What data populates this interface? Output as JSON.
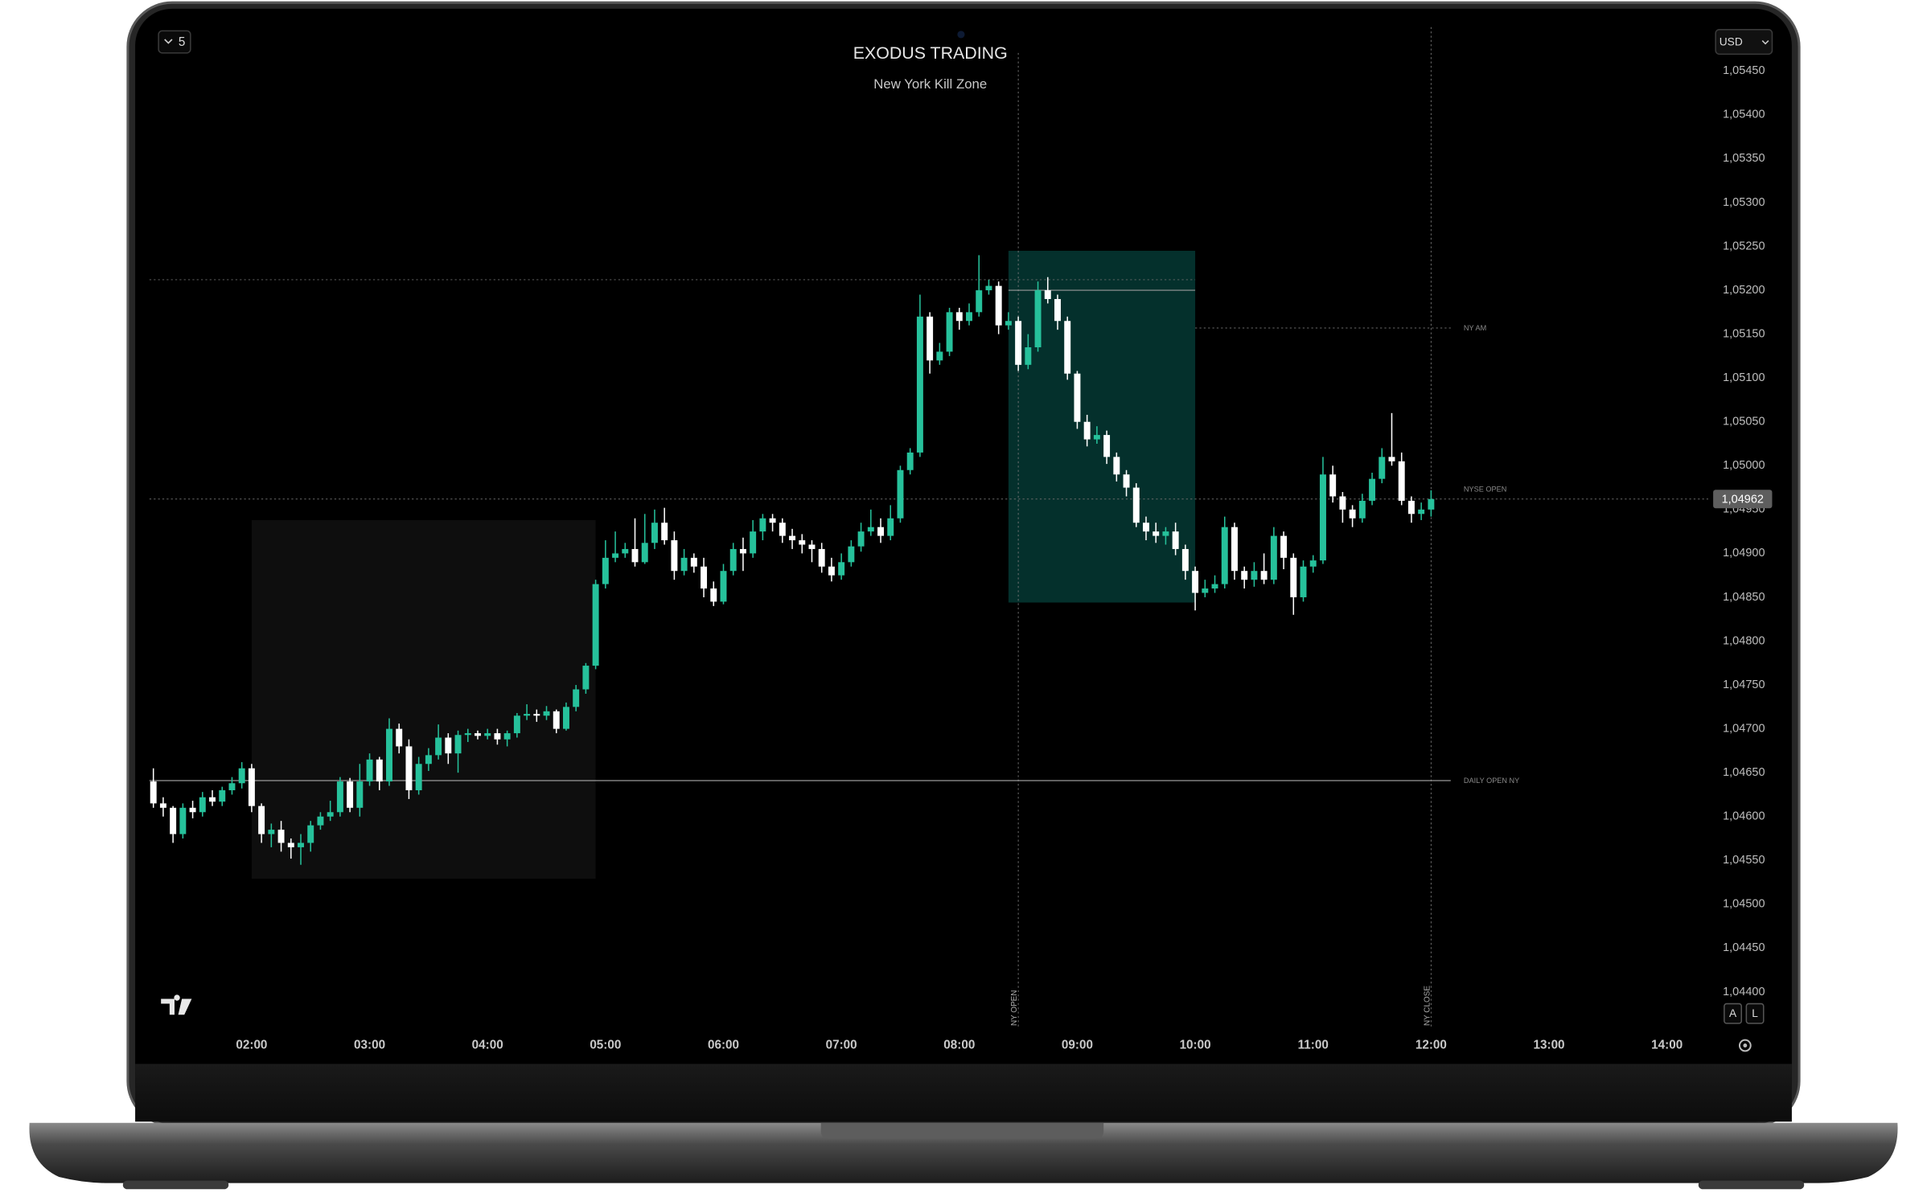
{
  "chart_data": {
    "type": "candlestick",
    "title": "EXODUS TRADING",
    "subtitle": "New York Kill Zone",
    "x": [
      "01:10",
      "01:15",
      "01:20",
      "01:25",
      "01:30",
      "01:35",
      "01:40",
      "01:45",
      "01:50",
      "01:55",
      "02:00",
      "02:05",
      "02:10",
      "02:15",
      "02:20",
      "02:25",
      "02:30",
      "02:35",
      "02:40",
      "02:45",
      "02:50",
      "02:55",
      "03:00",
      "03:05",
      "03:10",
      "03:15",
      "03:20",
      "03:25",
      "03:30",
      "03:35",
      "03:40",
      "03:45",
      "03:50",
      "03:55",
      "04:00",
      "04:05",
      "04:10",
      "04:15",
      "04:20",
      "04:25",
      "04:30",
      "04:35",
      "04:40",
      "04:45",
      "04:50",
      "04:55",
      "05:00",
      "05:05",
      "05:10",
      "05:15",
      "05:20",
      "05:25",
      "05:30",
      "05:35",
      "05:40",
      "05:45",
      "05:50",
      "05:55",
      "06:00",
      "06:05",
      "06:10",
      "06:15",
      "06:20",
      "06:25",
      "06:30",
      "06:35",
      "06:40",
      "06:45",
      "06:50",
      "06:55",
      "07:00",
      "07:05",
      "07:10",
      "07:15",
      "07:20",
      "07:25",
      "07:30",
      "07:35",
      "07:40",
      "07:45",
      "07:50",
      "07:55",
      "08:00",
      "08:05",
      "08:10",
      "08:15",
      "08:20",
      "08:25",
      "08:30",
      "08:35",
      "08:40",
      "08:45",
      "08:50",
      "08:55",
      "09:00",
      "09:05",
      "09:10",
      "09:15",
      "09:20",
      "09:25",
      "09:30",
      "09:35",
      "09:40",
      "09:45",
      "09:50",
      "09:55",
      "10:00",
      "10:05",
      "10:10",
      "10:15",
      "10:20",
      "10:25",
      "10:30",
      "10:35",
      "10:40",
      "10:45",
      "10:50",
      "10:55",
      "11:00",
      "11:05",
      "11:10",
      "11:15",
      "11:20",
      "11:25",
      "11:30",
      "11:35",
      "11:40",
      "11:45",
      "11:50",
      "11:55",
      "12:00"
    ],
    "open": [
      1.0464,
      1.04615,
      1.0461,
      1.0458,
      1.0461,
      1.04605,
      1.04622,
      1.04617,
      1.0463,
      1.04638,
      1.04655,
      1.04612,
      1.0458,
      1.04585,
      1.0457,
      1.04565,
      1.0457,
      1.0459,
      1.046,
      1.04605,
      1.0464,
      1.0461,
      1.0464,
      1.04665,
      1.0464,
      1.047,
      1.0468,
      1.0463,
      1.0466,
      1.0467,
      1.0469,
      1.04672,
      1.04693,
      1.04695,
      1.04692,
      1.04695,
      1.04688,
      1.04695,
      1.04715,
      1.04717,
      1.04715,
      1.0472,
      1.047,
      1.04725,
      1.04745,
      1.04772,
      1.04865,
      1.04895,
      1.049,
      1.04905,
      1.0489,
      1.04912,
      1.04935,
      1.04915,
      1.0488,
      1.04895,
      1.04885,
      1.0486,
      1.04845,
      1.0488,
      1.04905,
      1.049,
      1.04925,
      1.0494,
      1.04935,
      1.0492,
      1.04915,
      1.0491,
      1.04905,
      1.04885,
      1.04875,
      1.0489,
      1.04908,
      1.04925,
      1.0493,
      1.0492,
      1.0494,
      1.04995,
      1.05015,
      1.0517,
      1.0512,
      1.0513,
      1.05175,
      1.05165,
      1.05175,
      1.052,
      1.05205,
      1.0516,
      1.05165,
      1.05115,
      1.05135,
      1.052,
      1.0519,
      1.05165,
      1.05105,
      1.0505,
      1.0503,
      1.05035,
      1.0501,
      1.0499,
      1.04975,
      1.04935,
      1.04925,
      1.0492,
      1.04925,
      1.04905,
      1.0488,
      1.04855,
      1.0486,
      1.04865,
      1.0493,
      1.0488,
      1.0487,
      1.0488,
      1.0487,
      1.0492,
      1.04895,
      1.0485,
      1.04885,
      1.04892,
      1.0499,
      1.04965,
      1.0495,
      1.0494,
      1.0496,
      1.04985,
      1.0501,
      1.05005,
      1.0496,
      1.04945,
      1.0495
    ],
    "high": [
      1.04655,
      1.04622,
      1.04612,
      1.04615,
      1.04618,
      1.04628,
      1.0463,
      1.04634,
      1.04645,
      1.04662,
      1.0466,
      1.04615,
      1.04592,
      1.04595,
      1.04575,
      1.0458,
      1.04595,
      1.04605,
      1.04618,
      1.04645,
      1.04644,
      1.0466,
      1.04672,
      1.04668,
      1.04712,
      1.04706,
      1.04688,
      1.04668,
      1.04678,
      1.04705,
      1.04695,
      1.04698,
      1.047,
      1.04698,
      1.047,
      1.047,
      1.04698,
      1.04718,
      1.04728,
      1.04722,
      1.04726,
      1.04722,
      1.0473,
      1.0475,
      1.04775,
      1.0487,
      1.04915,
      1.04925,
      1.04912,
      1.0494,
      1.04945,
      1.0495,
      1.04952,
      1.04925,
      1.04905,
      1.049,
      1.04895,
      1.04868,
      1.04888,
      1.04912,
      1.04918,
      1.04938,
      1.04945,
      1.04945,
      1.0494,
      1.04928,
      1.04922,
      1.04915,
      1.04912,
      1.04895,
      1.049,
      1.04915,
      1.04935,
      1.0495,
      1.0494,
      1.04955,
      1.05,
      1.0502,
      1.05195,
      1.05175,
      1.0514,
      1.0518,
      1.0518,
      1.05185,
      1.0524,
      1.05212,
      1.0521,
      1.05175,
      1.0517,
      1.0515,
      1.0521,
      1.05215,
      1.05195,
      1.0517,
      1.05108,
      1.05058,
      1.05045,
      1.0504,
      1.05015,
      1.04995,
      1.0498,
      1.04942,
      1.04935,
      1.0493,
      1.04935,
      1.0491,
      1.04885,
      1.0487,
      1.04875,
      1.04942,
      1.04935,
      1.04885,
      1.0489,
      1.049,
      1.0493,
      1.04925,
      1.049,
      1.04892,
      1.04898,
      1.0501,
      1.05,
      1.0497,
      1.04955,
      1.04968,
      1.04992,
      1.0502,
      1.0506,
      1.05015,
      1.04965,
      1.04958,
      1.04972
    ],
    "low": [
      1.0461,
      1.046,
      1.0457,
      1.04575,
      1.04598,
      1.046,
      1.04612,
      1.04612,
      1.04625,
      1.04632,
      1.04605,
      1.0457,
      1.04565,
      1.0456,
      1.04552,
      1.04545,
      1.0456,
      1.04585,
      1.04595,
      1.046,
      1.04605,
      1.046,
      1.04635,
      1.0463,
      1.04635,
      1.04672,
      1.0462,
      1.04625,
      1.04652,
      1.04665,
      1.0466,
      1.0465,
      1.04685,
      1.04688,
      1.04688,
      1.04682,
      1.0468,
      1.0469,
      1.0471,
      1.04708,
      1.0471,
      1.04695,
      1.04698,
      1.0472,
      1.0474,
      1.04768,
      1.0486,
      1.0489,
      1.04895,
      1.04885,
      1.04888,
      1.04905,
      1.0491,
      1.0487,
      1.04875,
      1.04878,
      1.0485,
      1.0484,
      1.04842,
      1.04875,
      1.0488,
      1.04895,
      1.04915,
      1.04925,
      1.04912,
      1.04905,
      1.049,
      1.0489,
      1.04878,
      1.04868,
      1.0487,
      1.04885,
      1.04902,
      1.0492,
      1.04912,
      1.04915,
      1.04935,
      1.0499,
      1.0501,
      1.05105,
      1.05115,
      1.05125,
      1.05155,
      1.0516,
      1.0517,
      1.05195,
      1.0515,
      1.05155,
      1.05108,
      1.0511,
      1.0513,
      1.05185,
      1.05155,
      1.05098,
      1.05042,
      1.05022,
      1.05025,
      1.05002,
      1.04982,
      1.04965,
      1.0493,
      1.04915,
      1.04912,
      1.0491,
      1.04898,
      1.0487,
      1.04835,
      1.0485,
      1.04855,
      1.0486,
      1.0487,
      1.0486,
      1.04862,
      1.04865,
      1.04865,
      1.04882,
      1.0483,
      1.04845,
      1.04878,
      1.04888,
      1.04958,
      1.04935,
      1.0493,
      1.04935,
      1.04955,
      1.0498,
      1.05,
      1.04955,
      1.04935,
      1.04938,
      1.04942
    ],
    "close": [
      1.04615,
      1.0461,
      1.0458,
      1.0461,
      1.04605,
      1.04622,
      1.04617,
      1.0463,
      1.04638,
      1.04655,
      1.04612,
      1.0458,
      1.04585,
      1.0457,
      1.04565,
      1.0457,
      1.0459,
      1.046,
      1.04605,
      1.0464,
      1.0461,
      1.0464,
      1.04665,
      1.0464,
      1.047,
      1.0468,
      1.0463,
      1.0466,
      1.0467,
      1.0469,
      1.04672,
      1.04693,
      1.04695,
      1.04692,
      1.04695,
      1.04688,
      1.04695,
      1.04715,
      1.04717,
      1.04715,
      1.0472,
      1.047,
      1.04725,
      1.04745,
      1.04772,
      1.04865,
      1.04895,
      1.049,
      1.04905,
      1.0489,
      1.04912,
      1.04935,
      1.04915,
      1.0488,
      1.04895,
      1.04885,
      1.0486,
      1.04845,
      1.0488,
      1.04905,
      1.049,
      1.04925,
      1.0494,
      1.04935,
      1.0492,
      1.04915,
      1.0491,
      1.04905,
      1.04885,
      1.04875,
      1.0489,
      1.04908,
      1.04925,
      1.0493,
      1.0492,
      1.0494,
      1.04995,
      1.05015,
      1.0517,
      1.0512,
      1.0513,
      1.05175,
      1.05165,
      1.05175,
      1.052,
      1.05205,
      1.0516,
      1.05165,
      1.05115,
      1.05135,
      1.052,
      1.0519,
      1.05165,
      1.05105,
      1.0505,
      1.0503,
      1.05035,
      1.0501,
      1.0499,
      1.04975,
      1.04935,
      1.04925,
      1.0492,
      1.04925,
      1.04905,
      1.0488,
      1.04855,
      1.0486,
      1.04865,
      1.0493,
      1.0488,
      1.0487,
      1.0488,
      1.0487,
      1.0492,
      1.04895,
      1.0485,
      1.04885,
      1.04892,
      1.0499,
      1.04965,
      1.0495,
      1.0494,
      1.0496,
      1.04985,
      1.0501,
      1.05005,
      1.0496,
      1.04945,
      1.0495,
      1.04962
    ],
    "up_color": "#26c19b",
    "down_color": "#ffffff",
    "xlim": [
      "01:07",
      "14:21"
    ],
    "xticks": [
      "02:00",
      "03:00",
      "04:00",
      "05:00",
      "06:00",
      "07:00",
      "08:00",
      "09:00",
      "10:00",
      "11:00",
      "12:00",
      "13:00",
      "14:00"
    ],
    "ylim": [
      1.0436,
      1.055
    ],
    "yticks": [
      {
        "value": 1.044,
        "label": "1,04400"
      },
      {
        "value": 1.0445,
        "label": "1,04450"
      },
      {
        "value": 1.045,
        "label": "1,04500"
      },
      {
        "value": 1.0455,
        "label": "1,04550"
      },
      {
        "value": 1.046,
        "label": "1,04600"
      },
      {
        "value": 1.0465,
        "label": "1,04650"
      },
      {
        "value": 1.047,
        "label": "1,04700"
      },
      {
        "value": 1.0475,
        "label": "1,04750"
      },
      {
        "value": 1.048,
        "label": "1,04800"
      },
      {
        "value": 1.0485,
        "label": "1,04850"
      },
      {
        "value": 1.049,
        "label": "1,04900"
      },
      {
        "value": 1.0495,
        "label": "1,04950"
      },
      {
        "value": 1.05,
        "label": "1,05000"
      },
      {
        "value": 1.0505,
        "label": "1,05050"
      },
      {
        "value": 1.051,
        "label": "1,05100"
      },
      {
        "value": 1.0515,
        "label": "1,05150"
      },
      {
        "value": 1.052,
        "label": "1,05200"
      },
      {
        "value": 1.0525,
        "label": "1,05250"
      },
      {
        "value": 1.053,
        "label": "1,05300"
      },
      {
        "value": 1.0535,
        "label": "1,05350"
      },
      {
        "value": 1.054,
        "label": "1,05400"
      },
      {
        "value": 1.0545,
        "label": "1,05450"
      }
    ],
    "grid": false,
    "last_price": {
      "value": 1.04962,
      "label": "1,04962"
    },
    "zones": [
      {
        "start": "02:00",
        "end": "04:55",
        "top": 1.04938,
        "bottom": 1.04529,
        "color": "#0e0e0e"
      },
      {
        "start": "08:25",
        "end": "10:00",
        "top": 1.05245,
        "bottom": 1.04844,
        "color": "#04302c"
      }
    ],
    "levels": [
      {
        "value": 1.05212,
        "start": "01:08",
        "end": "10:00",
        "style": "dotted"
      },
      {
        "value": 1.052,
        "start": "08:25",
        "end": "10:00",
        "style": "solid"
      },
      {
        "label": "NY AM",
        "value": 1.05157,
        "start": "10:00",
        "end": "12:10",
        "style": "dotted"
      },
      {
        "label": "NYSE OPEN",
        "value": 1.04962,
        "start": "01:08",
        "end": "14:21",
        "style": "dotted"
      },
      {
        "label": "DAILY OPEN NY",
        "value": 1.04641,
        "start": "01:08",
        "end": "12:10",
        "style": "solid"
      }
    ],
    "sessions": [
      {
        "label": "NY OPEN",
        "time": "08:30"
      },
      {
        "label": "NY CLOSE",
        "time": "12:00"
      }
    ]
  },
  "ui": {
    "interval": "5",
    "currency": "USD",
    "buttons": [
      "A",
      "L"
    ]
  }
}
